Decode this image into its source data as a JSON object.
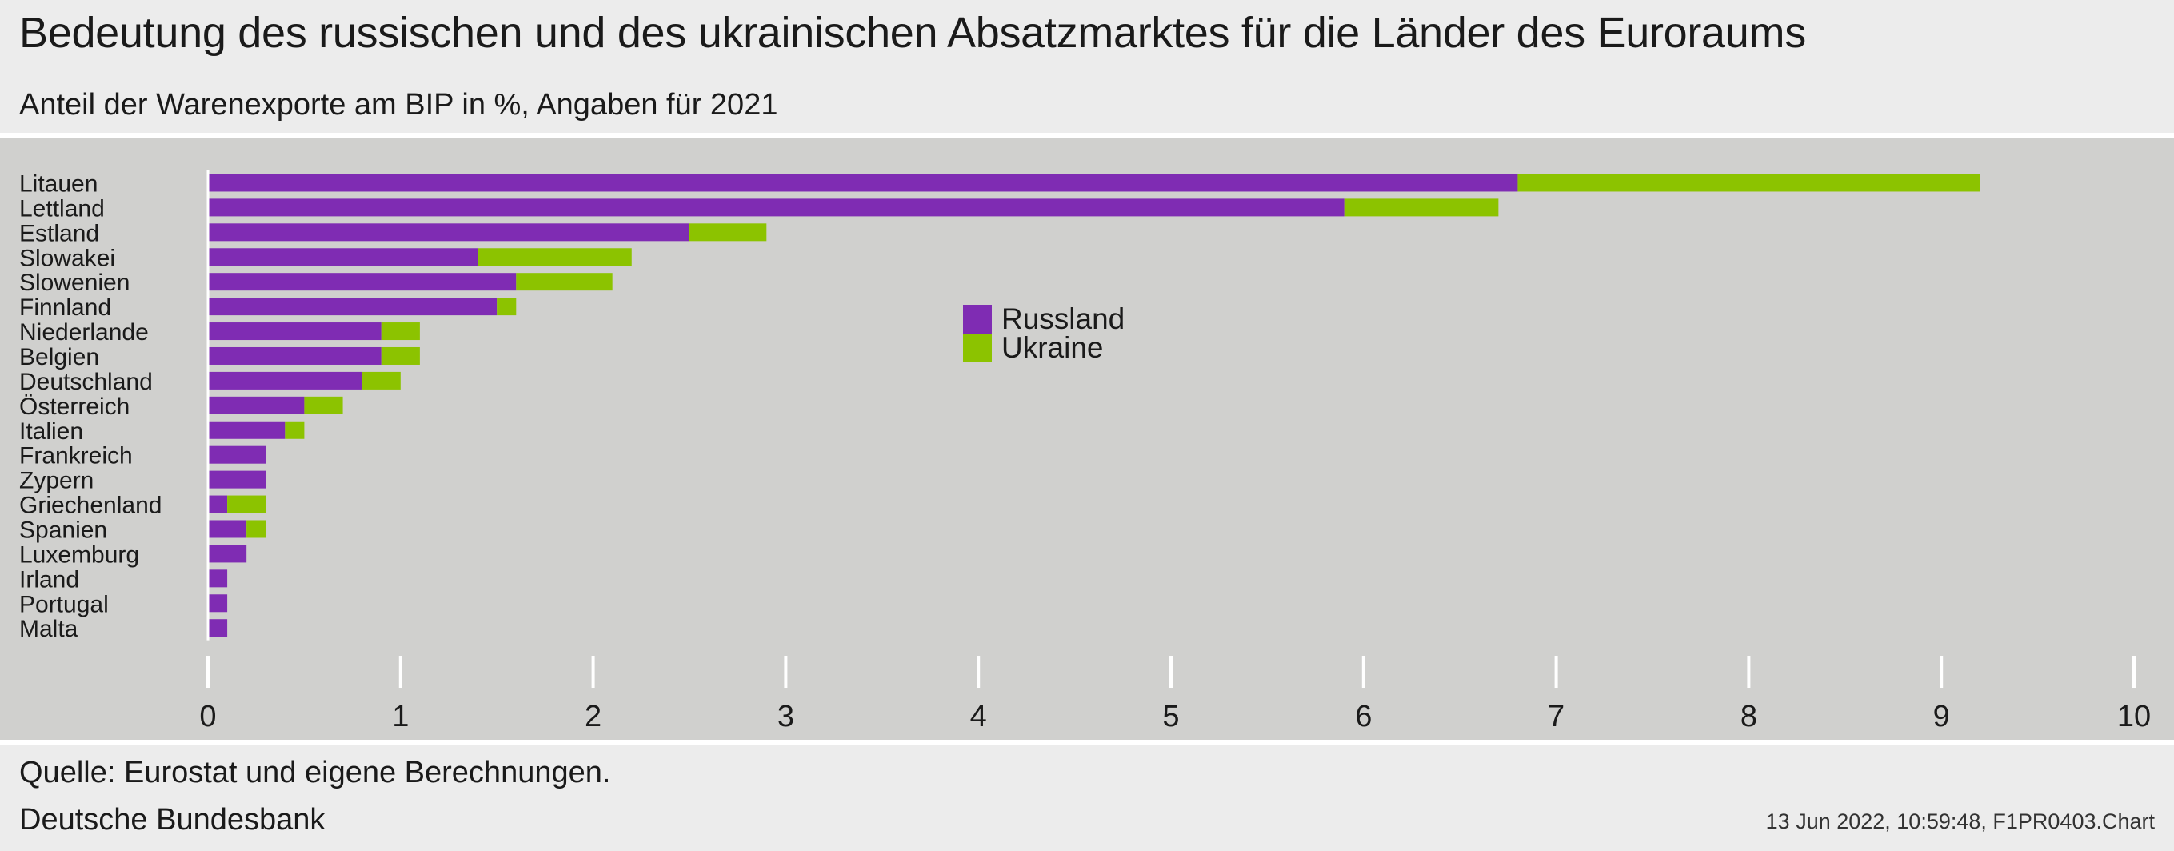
{
  "header": {
    "title": "Bedeutung des russischen und des ukrainischen Absatzmarktes für die Länder des Euroraums",
    "subtitle": "Anteil der Warenexporte am BIP in %, Angaben für 2021"
  },
  "footer": {
    "source": "Quelle: Eurostat und eigene Berechnungen.",
    "publisher": "Deutsche Bundesbank",
    "stamp": "13 Jun 2022, 10:59:48, F1PR0403.Chart"
  },
  "chart_data": {
    "type": "bar",
    "orientation": "horizontal",
    "stacked": true,
    "title": "Bedeutung des russischen und des ukrainischen Absatzmarktes für die Länder des Euroraums",
    "subtitle": "Anteil der Warenexporte am BIP in %, Angaben für 2021",
    "categories": [
      "Litauen",
      "Lettland",
      "Estland",
      "Slowakei",
      "Slowenien",
      "Finnland",
      "Niederlande",
      "Belgien",
      "Deutschland",
      "Österreich",
      "Italien",
      "Frankreich",
      "Zypern",
      "Griechenland",
      "Spanien",
      "Luxemburg",
      "Irland",
      "Portugal",
      "Malta"
    ],
    "series": [
      {
        "name": "Russland",
        "color": "#7f2cb3",
        "values": [
          6.8,
          5.9,
          2.5,
          1.4,
          1.6,
          1.5,
          0.9,
          0.9,
          0.8,
          0.5,
          0.4,
          0.3,
          0.3,
          0.1,
          0.2,
          0.2,
          0.1,
          0.1,
          0.1
        ]
      },
      {
        "name": "Ukraine",
        "color": "#8cc300",
        "values": [
          2.4,
          0.8,
          0.4,
          0.8,
          0.5,
          0.1,
          0.2,
          0.2,
          0.2,
          0.2,
          0.1,
          0.0,
          0.0,
          0.2,
          0.1,
          0.0,
          0.0,
          0.0,
          0.0
        ]
      }
    ],
    "xlim": [
      0,
      10
    ],
    "xticks": [
      0,
      1,
      2,
      3,
      4,
      5,
      6,
      7,
      8,
      9,
      10
    ],
    "xlabel": "",
    "ylabel": "",
    "grid": false,
    "legend_position": "center"
  }
}
